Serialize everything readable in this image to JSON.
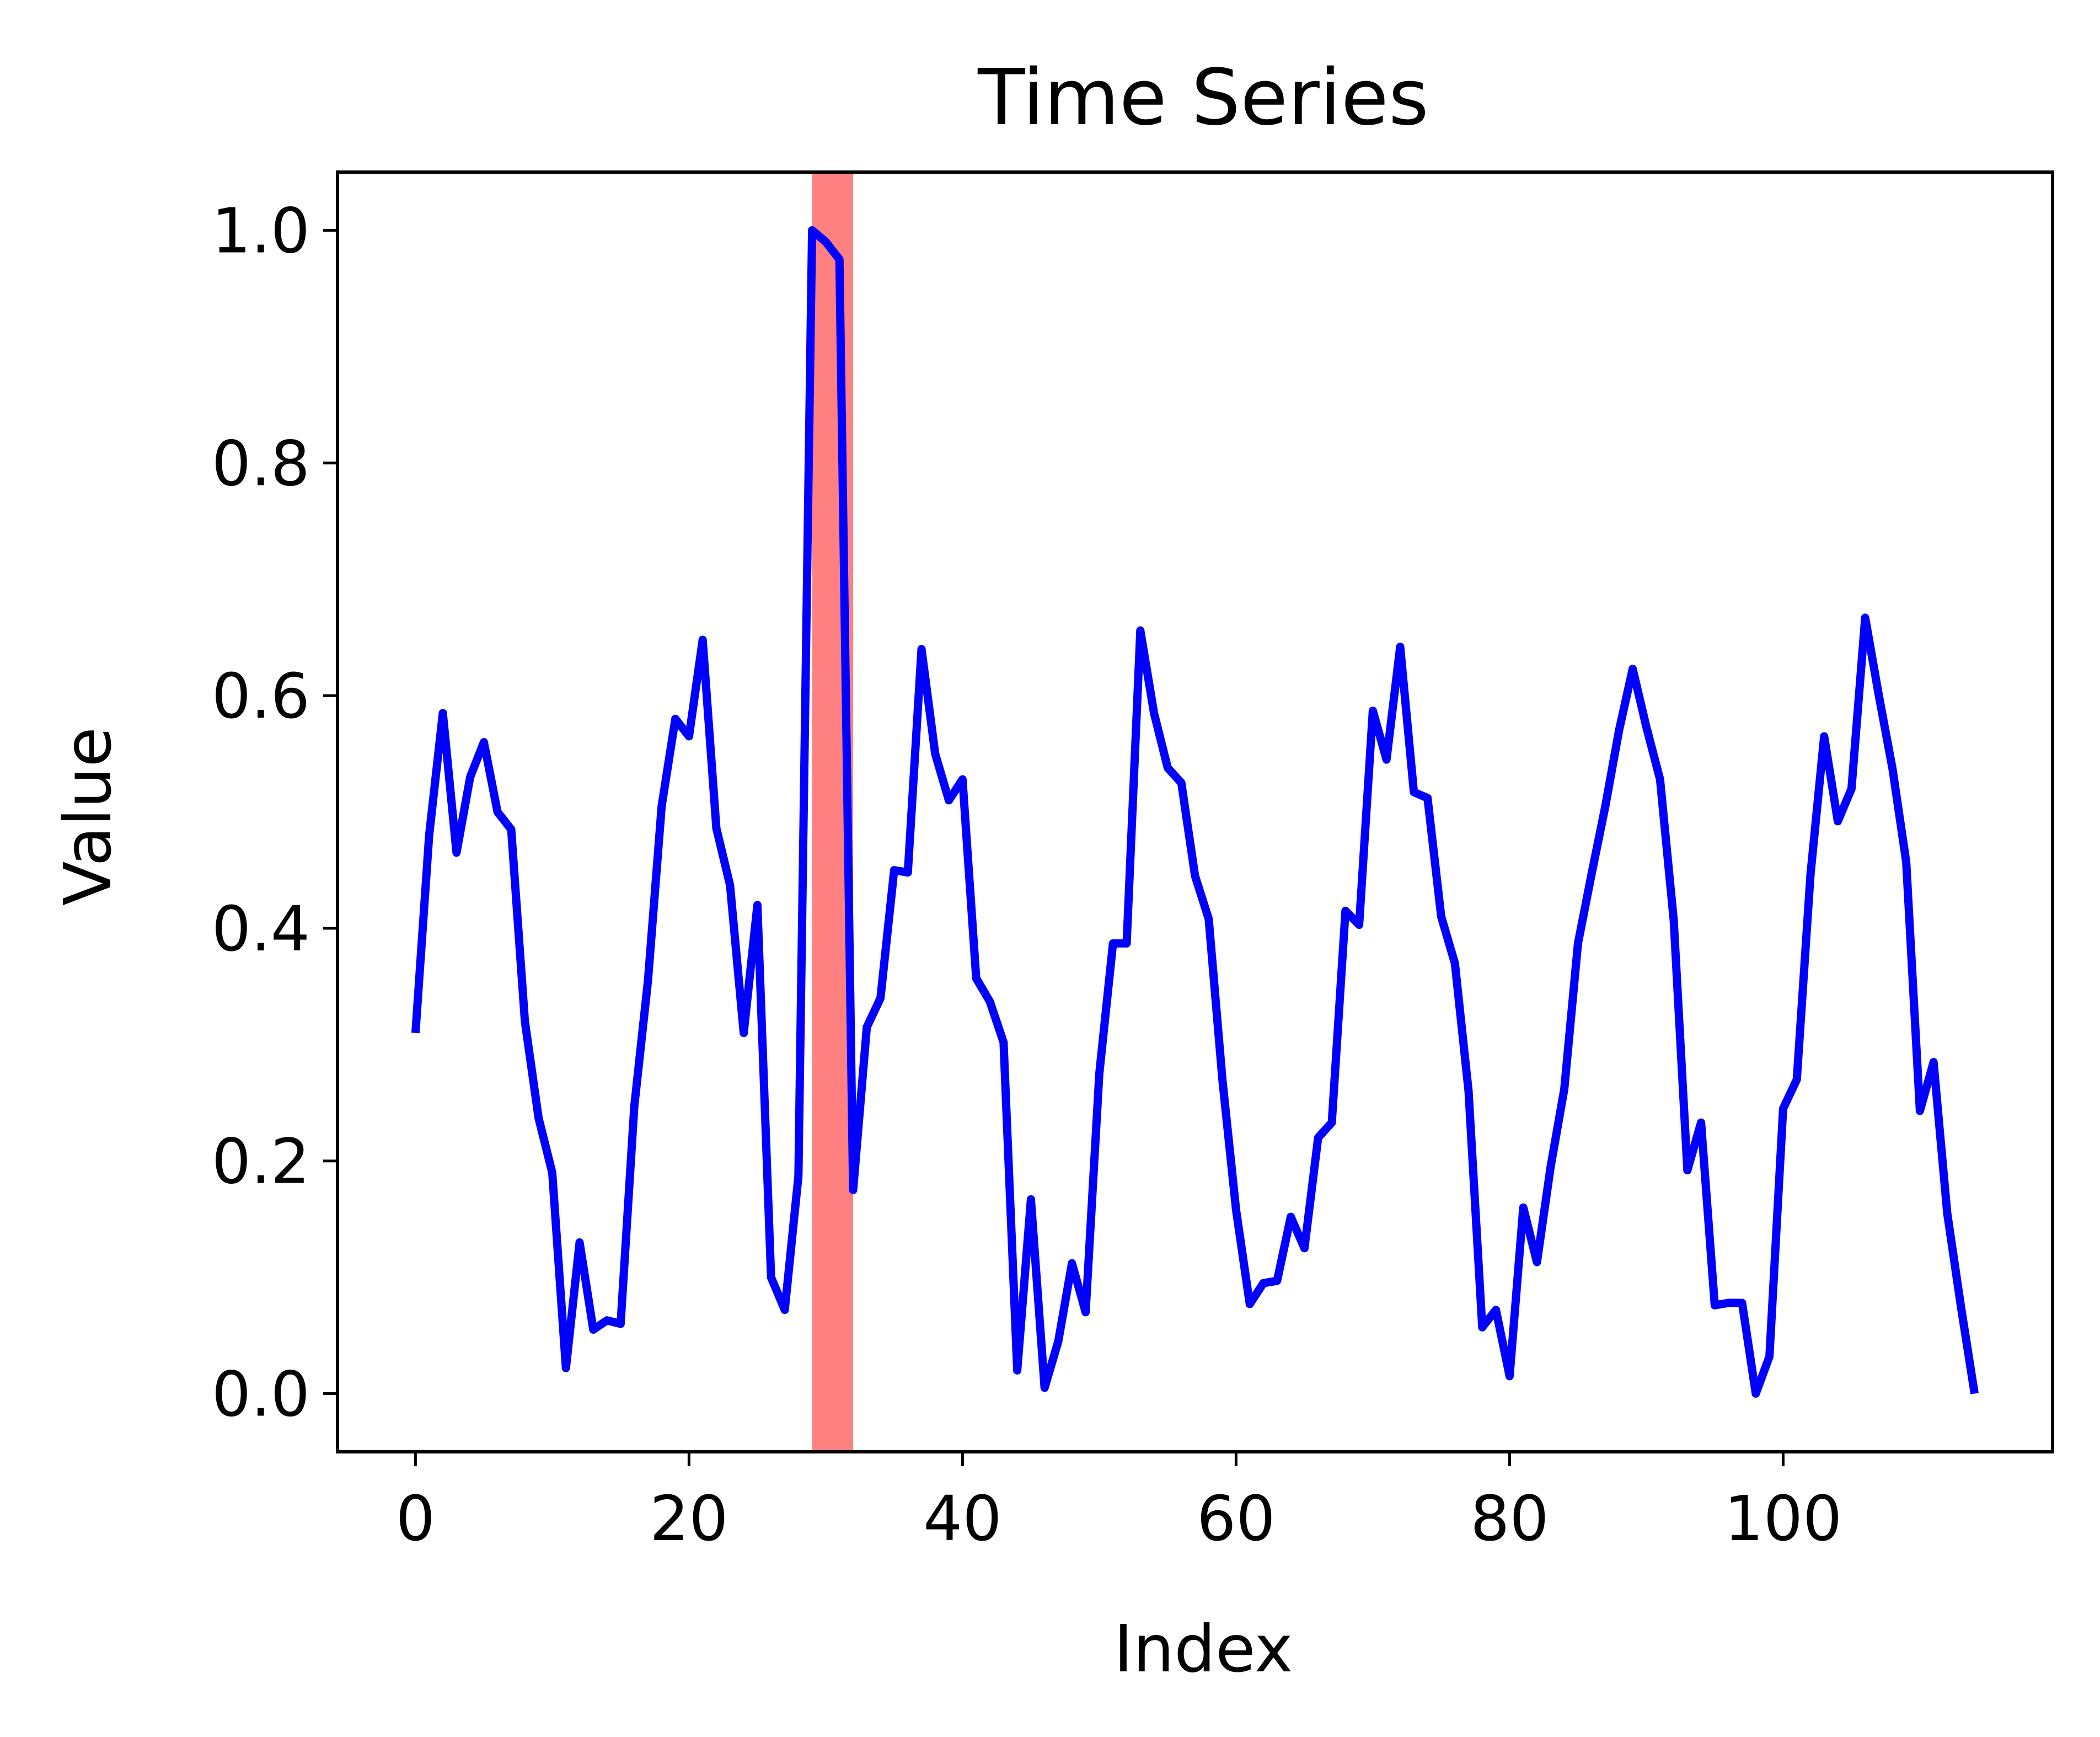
{
  "chart_data": {
    "type": "line",
    "title": "Time Series",
    "xlabel": "Index",
    "ylabel": "Value",
    "xlim": [
      -5.7,
      119.7
    ],
    "ylim": [
      -0.05,
      1.05
    ],
    "xticks": [
      0,
      20,
      40,
      60,
      80,
      100
    ],
    "xtick_labels": [
      "0",
      "20",
      "40",
      "60",
      "80",
      "100"
    ],
    "yticks": [
      0.0,
      0.2,
      0.4,
      0.6,
      0.8,
      1.0
    ],
    "ytick_labels": [
      "0.0",
      "0.2",
      "0.4",
      "0.6",
      "0.8",
      "1.0"
    ],
    "grid": false,
    "highlight_span": {
      "x_start": 29,
      "x_end": 32,
      "color": "#ff8080"
    },
    "series": [
      {
        "color": "#0000ff",
        "x": [
          0,
          1,
          2,
          3,
          4,
          5,
          6,
          7,
          8,
          9,
          10,
          11,
          12,
          13,
          14,
          15,
          16,
          17,
          18,
          19,
          20,
          21,
          22,
          23,
          24,
          25,
          26,
          27,
          28,
          29,
          30,
          31,
          32,
          33,
          34,
          35,
          36,
          37,
          38,
          39,
          40,
          41,
          42,
          43,
          44,
          45,
          46,
          47,
          48,
          49,
          50,
          51,
          52,
          53,
          54,
          55,
          56,
          57,
          58,
          59,
          60,
          61,
          62,
          63,
          64,
          65,
          66,
          67,
          68,
          69,
          70,
          71,
          72,
          73,
          74,
          75,
          76,
          77,
          78,
          79,
          80,
          81,
          82,
          83,
          84,
          85,
          86,
          87,
          88,
          89,
          90,
          91,
          92,
          93,
          94,
          95,
          96,
          97,
          98,
          99,
          100,
          101,
          102,
          103,
          104,
          105,
          106,
          107,
          108,
          109,
          110,
          111,
          112,
          113,
          114
        ],
        "y": [
          0.31,
          0.48,
          0.585,
          0.465,
          0.53,
          0.56,
          0.5,
          0.485,
          0.32,
          0.237,
          0.19,
          0.022,
          0.13,
          0.055,
          0.063,
          0.06,
          0.247,
          0.355,
          0.505,
          0.58,
          0.565,
          0.648,
          0.486,
          0.437,
          0.31,
          0.42,
          0.1,
          0.072,
          0.187,
          1.0,
          0.99,
          0.975,
          0.175,
          0.315,
          0.34,
          0.45,
          0.448,
          0.64,
          0.55,
          0.51,
          0.528,
          0.357,
          0.337,
          0.302,
          0.02,
          0.167,
          0.005,
          0.045,
          0.112,
          0.07,
          0.275,
          0.387,
          0.387,
          0.656,
          0.585,
          0.538,
          0.525,
          0.445,
          0.408,
          0.27,
          0.158,
          0.077,
          0.095,
          0.097,
          0.152,
          0.125,
          0.22,
          0.233,
          0.415,
          0.403,
          0.587,
          0.545,
          0.642,
          0.517,
          0.512,
          0.41,
          0.37,
          0.26,
          0.057,
          0.072,
          0.015,
          0.16,
          0.113,
          0.195,
          0.262,
          0.387,
          0.447,
          0.505,
          0.57,
          0.623,
          0.573,
          0.528,
          0.407,
          0.192,
          0.233,
          0.076,
          0.078,
          0.078,
          0.0,
          0.032,
          0.245,
          0.27,
          0.446,
          0.565,
          0.492,
          0.52,
          0.667,
          0.6,
          0.537,
          0.457,
          0.243,
          0.285,
          0.155,
          0.075,
          0.0
        ]
      }
    ]
  }
}
